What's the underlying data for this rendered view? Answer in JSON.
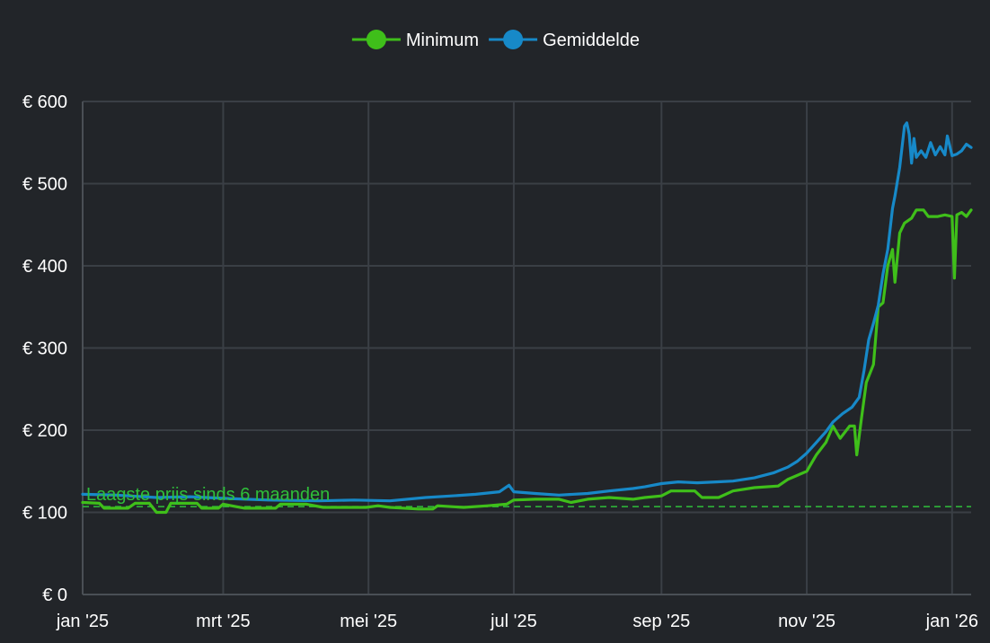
{
  "chart_data": {
    "type": "line",
    "title": "",
    "xlabel": "",
    "ylabel": "",
    "colors": {
      "background": "#222529",
      "grid": "#3a3f45",
      "axis": "#4a4f55",
      "text": "#ffffff",
      "minimum": "#3fbf1a",
      "average": "#1789c8",
      "annotation": "#2fbf3a"
    },
    "legend": {
      "position": "top-center",
      "items": [
        {
          "label": "Minimum",
          "color": "#3fbf1a"
        },
        {
          "label": "Gemiddelde",
          "color": "#1789c8"
        }
      ]
    },
    "x_axis": {
      "type": "date",
      "range": [
        "2025-01-01",
        "2026-01-09"
      ],
      "ticks": [
        {
          "date": "2025-01-01",
          "label": "jan '25"
        },
        {
          "date": "2025-03-01",
          "label": "mrt '25"
        },
        {
          "date": "2025-05-01",
          "label": "mei '25"
        },
        {
          "date": "2025-07-01",
          "label": "jul '25"
        },
        {
          "date": "2025-09-01",
          "label": "sep '25"
        },
        {
          "date": "2025-11-01",
          "label": "nov '25"
        },
        {
          "date": "2026-01-01",
          "label": "jan '26"
        }
      ]
    },
    "y_axis": {
      "range": [
        0,
        600
      ],
      "grid": true,
      "ticks": [
        {
          "value": 0,
          "label": "€ 0"
        },
        {
          "value": 100,
          "label": "€ 100"
        },
        {
          "value": 200,
          "label": "€ 200"
        },
        {
          "value": 300,
          "label": "€ 300"
        },
        {
          "value": 400,
          "label": "€ 400"
        },
        {
          "value": 500,
          "label": "€ 500"
        },
        {
          "value": 600,
          "label": "€ 600"
        }
      ]
    },
    "reference_line": {
      "value": 107,
      "label": "Laagste prijs sinds 6 maanden",
      "style": "dashed"
    },
    "series": [
      {
        "name": "Minimum",
        "color": "#3fbf1a",
        "points": [
          [
            "2025-01-01",
            112
          ],
          [
            "2025-01-08",
            111
          ],
          [
            "2025-01-10",
            105
          ],
          [
            "2025-01-20",
            105
          ],
          [
            "2025-01-23",
            111
          ],
          [
            "2025-01-29",
            111
          ],
          [
            "2025-02-01",
            100
          ],
          [
            "2025-02-05",
            100
          ],
          [
            "2025-02-07",
            111
          ],
          [
            "2025-02-18",
            111
          ],
          [
            "2025-02-20",
            105
          ],
          [
            "2025-02-27",
            105
          ],
          [
            "2025-03-01",
            110
          ],
          [
            "2025-03-10",
            105
          ],
          [
            "2025-03-23",
            105
          ],
          [
            "2025-03-25",
            110
          ],
          [
            "2025-04-05",
            110
          ],
          [
            "2025-04-12",
            106
          ],
          [
            "2025-04-30",
            106
          ],
          [
            "2025-05-05",
            108
          ],
          [
            "2025-05-10",
            106
          ],
          [
            "2025-05-22",
            104
          ],
          [
            "2025-05-28",
            104
          ],
          [
            "2025-05-30",
            108
          ],
          [
            "2025-06-10",
            106
          ],
          [
            "2025-06-20",
            108
          ],
          [
            "2025-06-28",
            110
          ],
          [
            "2025-07-01",
            115
          ],
          [
            "2025-07-10",
            116
          ],
          [
            "2025-07-20",
            116
          ],
          [
            "2025-07-25",
            112
          ],
          [
            "2025-08-01",
            116
          ],
          [
            "2025-08-10",
            118
          ],
          [
            "2025-08-20",
            116
          ],
          [
            "2025-08-25",
            118
          ],
          [
            "2025-09-01",
            120
          ],
          [
            "2025-09-05",
            126
          ],
          [
            "2025-09-15",
            126
          ],
          [
            "2025-09-18",
            118
          ],
          [
            "2025-09-25",
            118
          ],
          [
            "2025-10-01",
            126
          ],
          [
            "2025-10-10",
            130
          ],
          [
            "2025-10-20",
            132
          ],
          [
            "2025-10-24",
            140
          ],
          [
            "2025-11-01",
            150
          ],
          [
            "2025-11-05",
            170
          ],
          [
            "2025-11-09",
            185
          ],
          [
            "2025-11-12",
            205
          ],
          [
            "2025-11-15",
            190
          ],
          [
            "2025-11-19",
            205
          ],
          [
            "2025-11-21",
            205
          ],
          [
            "2025-11-22",
            170
          ],
          [
            "2025-11-24",
            215
          ],
          [
            "2025-11-26",
            258
          ],
          [
            "2025-11-29",
            280
          ],
          [
            "2025-12-01",
            350
          ],
          [
            "2025-12-03",
            355
          ],
          [
            "2025-12-05",
            400
          ],
          [
            "2025-12-07",
            420
          ],
          [
            "2025-12-08",
            380
          ],
          [
            "2025-12-10",
            440
          ],
          [
            "2025-12-12",
            452
          ],
          [
            "2025-12-15",
            458
          ],
          [
            "2025-12-17",
            468
          ],
          [
            "2025-12-20",
            468
          ],
          [
            "2025-12-22",
            460
          ],
          [
            "2025-12-26",
            460
          ],
          [
            "2025-12-29",
            462
          ],
          [
            "2026-01-01",
            460
          ],
          [
            "2026-01-02",
            385
          ],
          [
            "2026-01-03",
            462
          ],
          [
            "2026-01-05",
            465
          ],
          [
            "2026-01-07",
            460
          ],
          [
            "2026-01-09",
            468
          ]
        ]
      },
      {
        "name": "Gemiddelde",
        "color": "#1789c8",
        "points": [
          [
            "2025-01-01",
            122
          ],
          [
            "2025-01-15",
            121
          ],
          [
            "2025-02-01",
            118
          ],
          [
            "2025-02-15",
            119
          ],
          [
            "2025-03-01",
            117
          ],
          [
            "2025-03-20",
            115
          ],
          [
            "2025-04-10",
            114
          ],
          [
            "2025-04-25",
            115
          ],
          [
            "2025-05-10",
            114
          ],
          [
            "2025-05-25",
            118
          ],
          [
            "2025-06-05",
            120
          ],
          [
            "2025-06-15",
            122
          ],
          [
            "2025-06-25",
            125
          ],
          [
            "2025-06-29",
            133
          ],
          [
            "2025-07-01",
            125
          ],
          [
            "2025-07-10",
            123
          ],
          [
            "2025-07-20",
            121
          ],
          [
            "2025-08-01",
            123
          ],
          [
            "2025-08-10",
            126
          ],
          [
            "2025-08-20",
            129
          ],
          [
            "2025-08-25",
            131
          ],
          [
            "2025-09-01",
            135
          ],
          [
            "2025-09-08",
            137
          ],
          [
            "2025-09-16",
            136
          ],
          [
            "2025-09-24",
            137
          ],
          [
            "2025-10-01",
            138
          ],
          [
            "2025-10-10",
            142
          ],
          [
            "2025-10-18",
            148
          ],
          [
            "2025-10-24",
            155
          ],
          [
            "2025-10-28",
            162
          ],
          [
            "2025-11-01",
            172
          ],
          [
            "2025-11-05",
            185
          ],
          [
            "2025-11-09",
            198
          ],
          [
            "2025-11-12",
            210
          ],
          [
            "2025-11-16",
            220
          ],
          [
            "2025-11-20",
            228
          ],
          [
            "2025-11-23",
            240
          ],
          [
            "2025-11-25",
            272
          ],
          [
            "2025-11-27",
            310
          ],
          [
            "2025-11-29",
            330
          ],
          [
            "2025-12-01",
            352
          ],
          [
            "2025-12-03",
            390
          ],
          [
            "2025-12-05",
            420
          ],
          [
            "2025-12-07",
            470
          ],
          [
            "2025-12-08",
            485
          ],
          [
            "2025-12-10",
            520
          ],
          [
            "2025-12-12",
            570
          ],
          [
            "2025-12-13",
            574
          ],
          [
            "2025-12-14",
            560
          ],
          [
            "2025-12-15",
            525
          ],
          [
            "2025-12-16",
            555
          ],
          [
            "2025-12-17",
            532
          ],
          [
            "2025-12-19",
            540
          ],
          [
            "2025-12-21",
            532
          ],
          [
            "2025-12-23",
            550
          ],
          [
            "2025-12-25",
            535
          ],
          [
            "2025-12-27",
            545
          ],
          [
            "2025-12-29",
            535
          ],
          [
            "2025-12-30",
            558
          ],
          [
            "2026-01-01",
            534
          ],
          [
            "2026-01-03",
            536
          ],
          [
            "2026-01-05",
            540
          ],
          [
            "2026-01-07",
            548
          ],
          [
            "2026-01-09",
            544
          ]
        ]
      }
    ]
  }
}
